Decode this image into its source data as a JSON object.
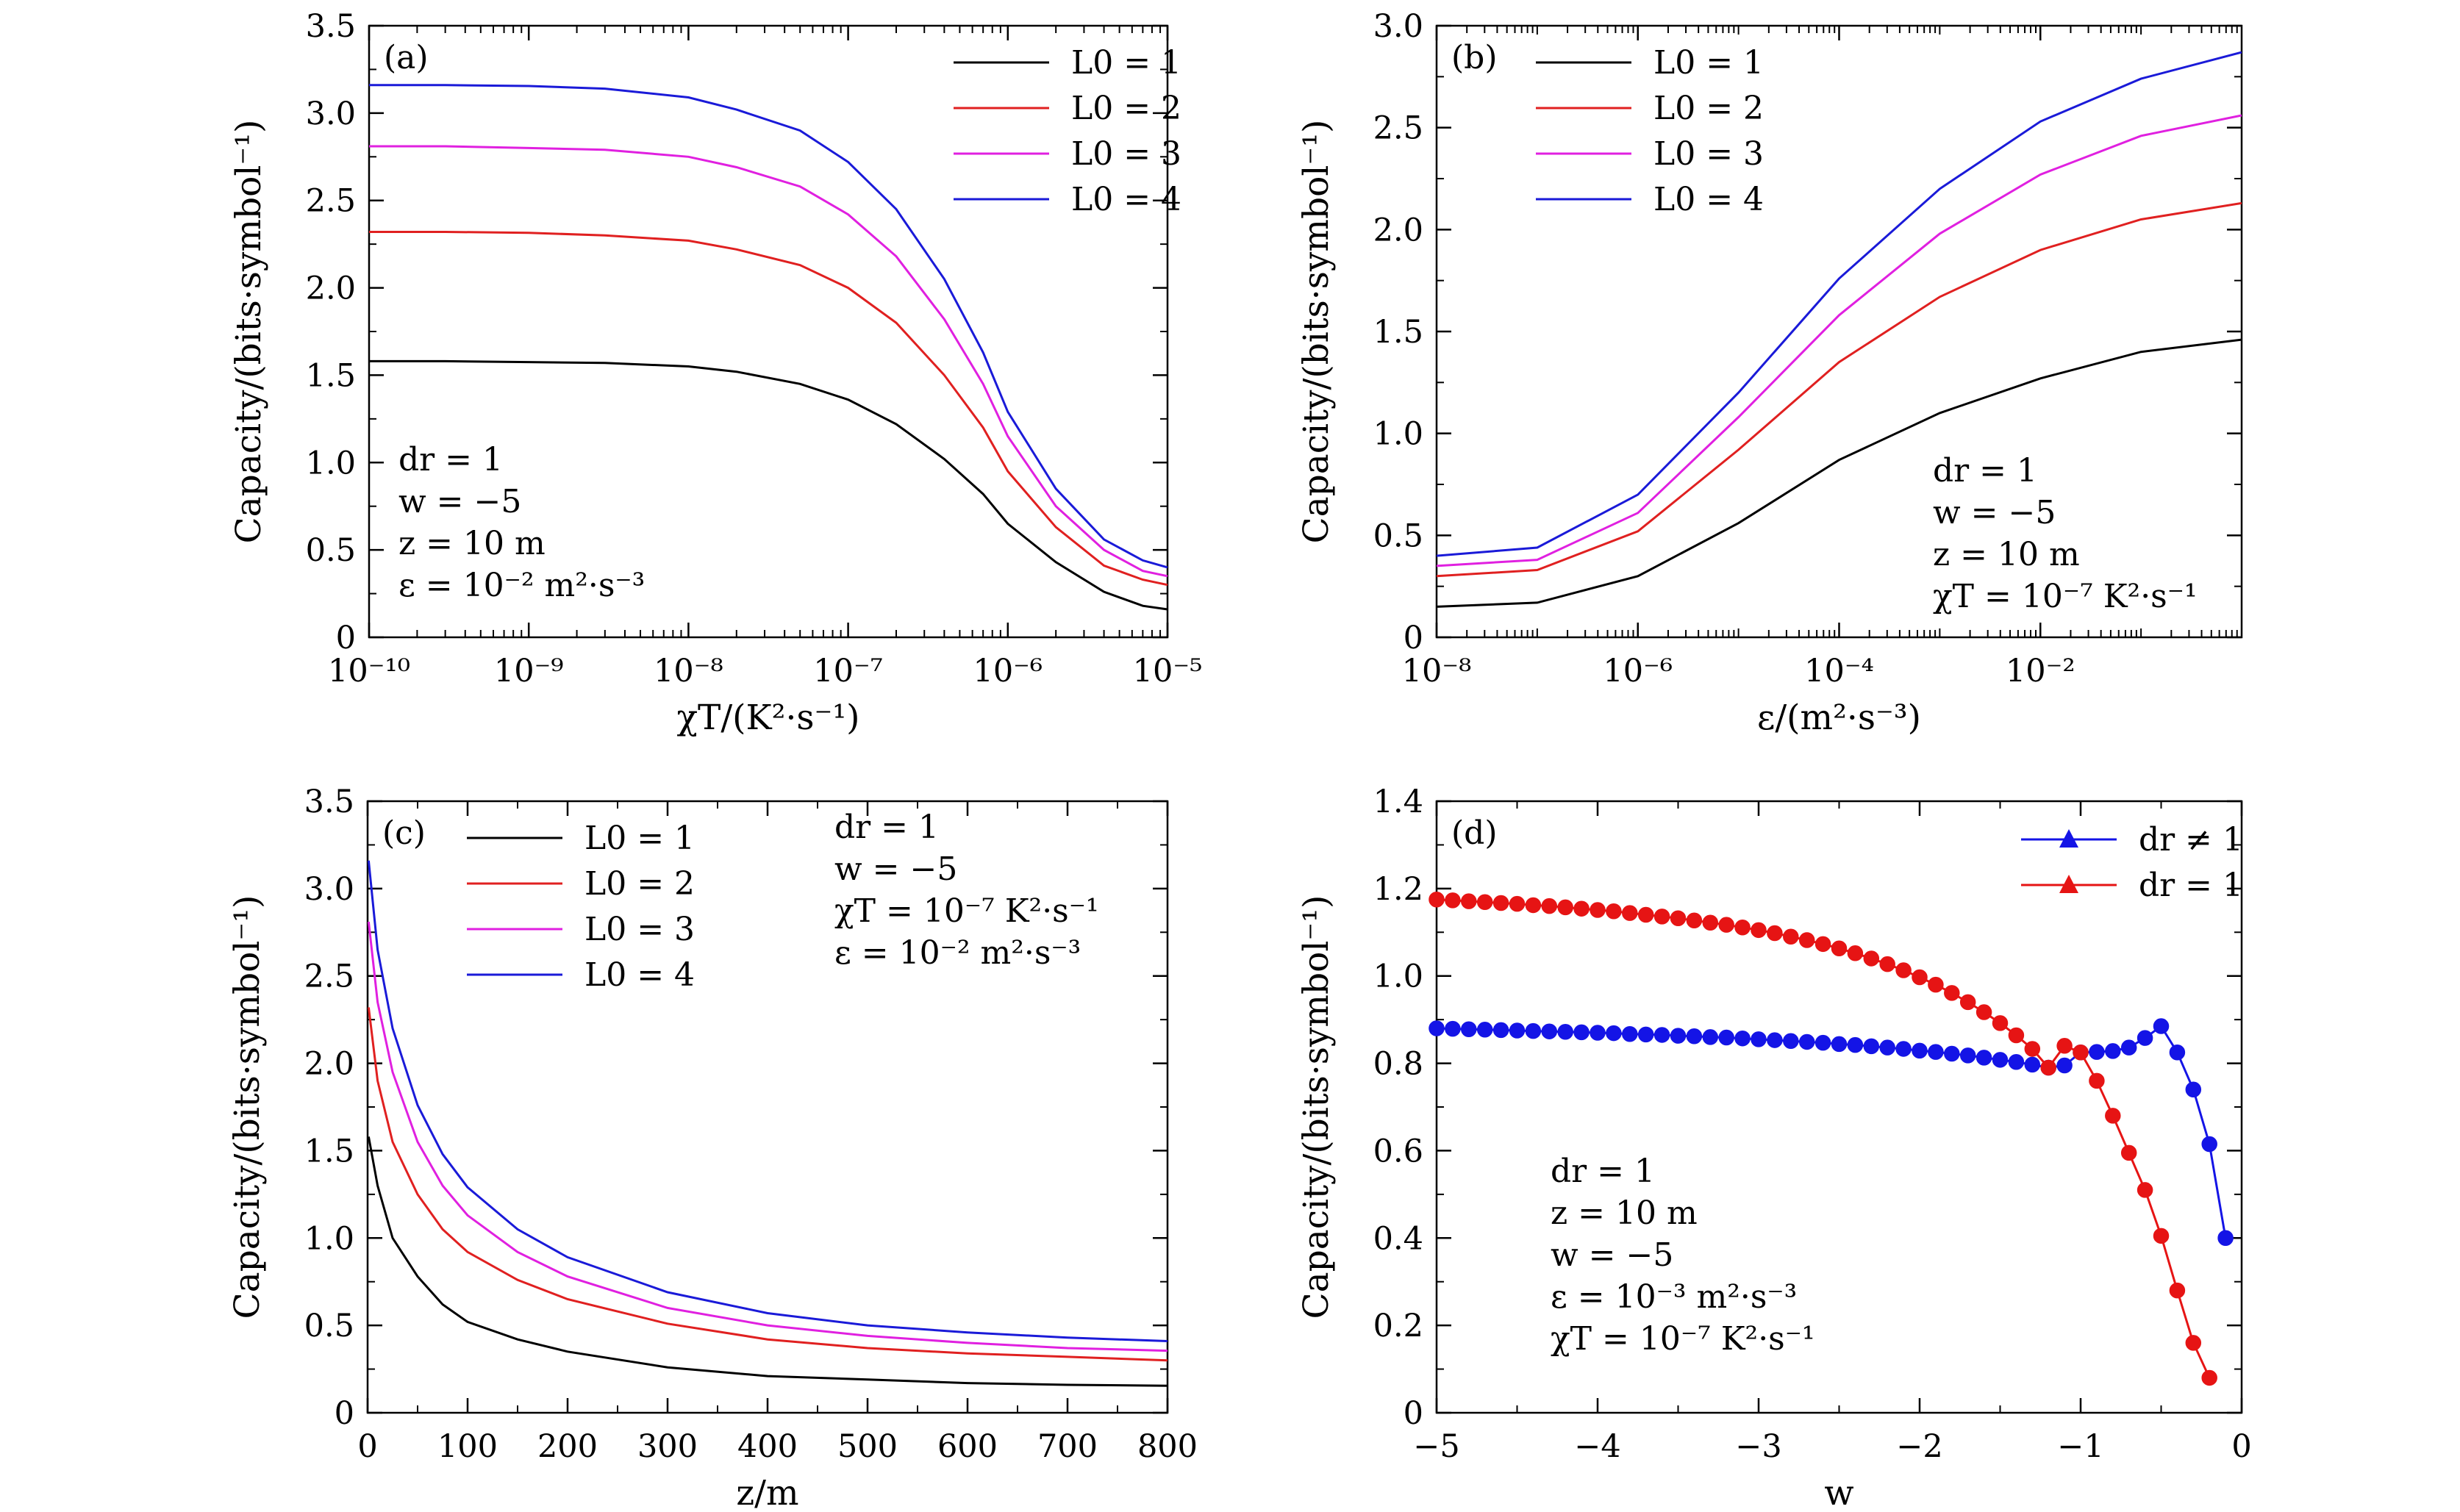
{
  "figure": {
    "panels": [
      {
        "tag": "(a)",
        "xlabel": "χT/(K²·s⁻¹)",
        "ylabel": "Capacity/(bits·symbol⁻¹)",
        "x_ticks": [
          "10⁻¹⁰",
          "10⁻⁹",
          "10⁻⁸",
          "10⁻⁷",
          "10⁻⁶",
          "10⁻⁵"
        ],
        "y_ticks": [
          "0",
          "0.5",
          "1.0",
          "1.5",
          "2.0",
          "2.5",
          "3.0",
          "3.5"
        ],
        "legend": [
          "L0 = 1",
          "L0 = 2",
          "L0 = 3",
          "L0 = 4"
        ],
        "notes": [
          "dr = 1",
          "w = −5",
          "z = 10 m",
          "ε = 10⁻² m²·s⁻³"
        ]
      },
      {
        "tag": "(b)",
        "xlabel": "ε/(m²·s⁻³)",
        "ylabel": "Capacity/(bits·symbol⁻¹)",
        "x_ticks": [
          "10⁻⁸",
          "10⁻⁶",
          "10⁻⁴",
          "10⁻²"
        ],
        "y_ticks": [
          "0",
          "0.5",
          "1.0",
          "1.5",
          "2.0",
          "2.5",
          "3.0"
        ],
        "legend": [
          "L0 = 1",
          "L0 = 2",
          "L0 = 3",
          "L0 = 4"
        ],
        "notes": [
          "dr = 1",
          "w = −5",
          "z = 10 m",
          "χT = 10⁻⁷ K²·s⁻¹"
        ]
      },
      {
        "tag": "(c)",
        "xlabel": "z/m",
        "ylabel": "Capacity/(bits·symbol⁻¹)",
        "x_ticks": [
          "0",
          "100",
          "200",
          "300",
          "400",
          "500",
          "600",
          "700",
          "800"
        ],
        "y_ticks": [
          "0",
          "0.5",
          "1.0",
          "1.5",
          "2.0",
          "2.5",
          "3.0",
          "3.5"
        ],
        "legend": [
          "L0 = 1",
          "L0 = 2",
          "L0 = 3",
          "L0 = 4"
        ],
        "notes": [
          "dr = 1",
          "w = −5",
          "χT = 10⁻⁷ K²·s⁻¹",
          "ε = 10⁻² m²·s⁻³"
        ]
      },
      {
        "tag": "(d)",
        "xlabel": "w",
        "ylabel": "Capacity/(bits·symbol⁻¹)",
        "x_ticks": [
          "−5",
          "−4",
          "−3",
          "−2",
          "−1",
          "0"
        ],
        "y_ticks": [
          "0",
          "0.2",
          "0.4",
          "0.6",
          "0.8",
          "1.0",
          "1.2",
          "1.4"
        ],
        "legend": [
          "dr ≠ 1",
          "dr = 1"
        ],
        "notes": [
          "dr = 1",
          "z = 10 m",
          "w = −5",
          "ε = 10⁻³ m²·s⁻³",
          "χT = 10⁻⁷ K²·s⁻¹"
        ]
      }
    ]
  },
  "colors": {
    "L0_1": "#000000",
    "L0_2": "#e02020",
    "L0_3": "#e020e0",
    "L0_4": "#1a1ad8",
    "dr_neq_1": "#1414e6",
    "dr_eq_1": "#e61414"
  },
  "chart_data": [
    {
      "type": "line",
      "x_scale": "log",
      "xlim": [
        1e-10,
        1e-05
      ],
      "ylim": [
        0,
        3.5
      ],
      "x": [
        1e-10,
        3e-10,
        1e-09,
        3e-09,
        1e-08,
        2e-08,
        5e-08,
        1e-07,
        2e-07,
        4e-07,
        7e-07,
        1e-06,
        2e-06,
        4e-06,
        7e-06,
        1e-05
      ],
      "series": [
        {
          "name": "L0 = 1",
          "values": [
            1.58,
            1.58,
            1.575,
            1.57,
            1.55,
            1.52,
            1.45,
            1.36,
            1.22,
            1.02,
            0.82,
            0.65,
            0.43,
            0.26,
            0.18,
            0.16
          ]
        },
        {
          "name": "L0 = 2",
          "values": [
            2.32,
            2.32,
            2.315,
            2.3,
            2.27,
            2.22,
            2.13,
            2.0,
            1.8,
            1.5,
            1.2,
            0.95,
            0.63,
            0.41,
            0.33,
            0.3
          ]
        },
        {
          "name": "L0 = 3",
          "values": [
            2.81,
            2.81,
            2.8,
            2.79,
            2.75,
            2.69,
            2.58,
            2.42,
            2.18,
            1.82,
            1.45,
            1.15,
            0.75,
            0.5,
            0.38,
            0.35
          ]
        },
        {
          "name": "L0 = 4",
          "values": [
            3.16,
            3.16,
            3.155,
            3.14,
            3.09,
            3.02,
            2.9,
            2.72,
            2.45,
            2.05,
            1.63,
            1.29,
            0.85,
            0.56,
            0.44,
            0.4
          ]
        }
      ]
    },
    {
      "type": "line",
      "x_scale": "log",
      "xlim": [
        1e-08,
        1
      ],
      "ylim": [
        0,
        3.0
      ],
      "x": [
        1e-08,
        1e-07,
        1e-06,
        1e-05,
        0.0001,
        0.001,
        0.01,
        0.1,
        1
      ],
      "series": [
        {
          "name": "L0 = 1",
          "values": [
            0.15,
            0.17,
            0.3,
            0.56,
            0.87,
            1.1,
            1.27,
            1.4,
            1.46
          ]
        },
        {
          "name": "L0 = 2",
          "values": [
            0.3,
            0.33,
            0.52,
            0.92,
            1.35,
            1.67,
            1.9,
            2.05,
            2.13
          ]
        },
        {
          "name": "L0 = 3",
          "values": [
            0.35,
            0.38,
            0.61,
            1.08,
            1.58,
            1.98,
            2.27,
            2.46,
            2.56
          ]
        },
        {
          "name": "L0 = 4",
          "values": [
            0.4,
            0.44,
            0.7,
            1.2,
            1.76,
            2.2,
            2.53,
            2.74,
            2.87
          ]
        }
      ]
    },
    {
      "type": "line",
      "xlim": [
        0,
        800
      ],
      "ylim": [
        0,
        3.5
      ],
      "x": [
        1,
        10,
        25,
        50,
        75,
        100,
        150,
        200,
        300,
        400,
        500,
        600,
        700,
        800
      ],
      "series": [
        {
          "name": "L0 = 1",
          "values": [
            1.58,
            1.3,
            1.0,
            0.78,
            0.62,
            0.52,
            0.42,
            0.35,
            0.26,
            0.21,
            0.19,
            0.17,
            0.16,
            0.155
          ]
        },
        {
          "name": "L0 = 2",
          "values": [
            2.32,
            1.9,
            1.55,
            1.25,
            1.05,
            0.92,
            0.76,
            0.65,
            0.51,
            0.42,
            0.37,
            0.34,
            0.32,
            0.3
          ]
        },
        {
          "name": "L0 = 3",
          "values": [
            2.81,
            2.35,
            1.95,
            1.55,
            1.3,
            1.13,
            0.92,
            0.78,
            0.6,
            0.5,
            0.44,
            0.4,
            0.37,
            0.355
          ]
        },
        {
          "name": "L0 = 4",
          "values": [
            3.16,
            2.65,
            2.2,
            1.76,
            1.48,
            1.29,
            1.05,
            0.89,
            0.69,
            0.57,
            0.5,
            0.46,
            0.43,
            0.41
          ]
        }
      ]
    },
    {
      "type": "line",
      "markers": true,
      "xlim": [
        -5,
        0
      ],
      "ylim": [
        0,
        1.4
      ],
      "series": [
        {
          "name": "dr ≠ 1",
          "points": [
            [
              -5.0,
              0.88
            ],
            [
              -4.9,
              0.879
            ],
            [
              -4.8,
              0.878
            ],
            [
              -4.7,
              0.877
            ],
            [
              -4.6,
              0.876
            ],
            [
              -4.5,
              0.875
            ],
            [
              -4.4,
              0.874
            ],
            [
              -4.3,
              0.873
            ],
            [
              -4.2,
              0.872
            ],
            [
              -4.1,
              0.871
            ],
            [
              -4.0,
              0.87
            ],
            [
              -3.9,
              0.869
            ],
            [
              -3.8,
              0.867
            ],
            [
              -3.7,
              0.866
            ],
            [
              -3.6,
              0.865
            ],
            [
              -3.5,
              0.863
            ],
            [
              -3.4,
              0.862
            ],
            [
              -3.3,
              0.86
            ],
            [
              -3.2,
              0.859
            ],
            [
              -3.1,
              0.857
            ],
            [
              -3.0,
              0.855
            ],
            [
              -2.9,
              0.853
            ],
            [
              -2.8,
              0.851
            ],
            [
              -2.7,
              0.849
            ],
            [
              -2.6,
              0.847
            ],
            [
              -2.5,
              0.844
            ],
            [
              -2.4,
              0.842
            ],
            [
              -2.3,
              0.839
            ],
            [
              -2.2,
              0.836
            ],
            [
              -2.1,
              0.833
            ],
            [
              -2.0,
              0.829
            ],
            [
              -1.9,
              0.826
            ],
            [
              -1.8,
              0.822
            ],
            [
              -1.7,
              0.818
            ],
            [
              -1.6,
              0.813
            ],
            [
              -1.5,
              0.808
            ],
            [
              -1.4,
              0.803
            ],
            [
              -1.3,
              0.797
            ],
            [
              -1.2,
              0.79
            ],
            [
              -1.1,
              0.795
            ],
            [
              -1.0,
              0.825
            ],
            [
              -0.9,
              0.826
            ],
            [
              -0.8,
              0.828
            ],
            [
              -0.7,
              0.836
            ],
            [
              -0.6,
              0.858
            ],
            [
              -0.5,
              0.885
            ],
            [
              -0.4,
              0.825
            ],
            [
              -0.3,
              0.74
            ],
            [
              -0.2,
              0.615
            ],
            [
              -0.1,
              0.4
            ]
          ]
        },
        {
          "name": "dr = 1",
          "points": [
            [
              -5.0,
              1.175
            ],
            [
              -4.9,
              1.173
            ],
            [
              -4.8,
              1.171
            ],
            [
              -4.7,
              1.169
            ],
            [
              -4.6,
              1.167
            ],
            [
              -4.5,
              1.165
            ],
            [
              -4.4,
              1.162
            ],
            [
              -4.3,
              1.16
            ],
            [
              -4.2,
              1.157
            ],
            [
              -4.1,
              1.154
            ],
            [
              -4.0,
              1.151
            ],
            [
              -3.9,
              1.148
            ],
            [
              -3.8,
              1.144
            ],
            [
              -3.7,
              1.14
            ],
            [
              -3.6,
              1.136
            ],
            [
              -3.5,
              1.132
            ],
            [
              -3.4,
              1.127
            ],
            [
              -3.3,
              1.122
            ],
            [
              -3.2,
              1.117
            ],
            [
              -3.1,
              1.111
            ],
            [
              -3.0,
              1.105
            ],
            [
              -2.9,
              1.098
            ],
            [
              -2.8,
              1.09
            ],
            [
              -2.7,
              1.082
            ],
            [
              -2.6,
              1.073
            ],
            [
              -2.5,
              1.063
            ],
            [
              -2.4,
              1.052
            ],
            [
              -2.3,
              1.04
            ],
            [
              -2.2,
              1.027
            ],
            [
              -2.1,
              1.013
            ],
            [
              -2.0,
              0.997
            ],
            [
              -1.9,
              0.98
            ],
            [
              -1.8,
              0.961
            ],
            [
              -1.7,
              0.94
            ],
            [
              -1.6,
              0.917
            ],
            [
              -1.5,
              0.892
            ],
            [
              -1.4,
              0.864
            ],
            [
              -1.3,
              0.833
            ],
            [
              -1.2,
              0.79
            ],
            [
              -1.1,
              0.84
            ],
            [
              -1.0,
              0.825
            ],
            [
              -0.9,
              0.76
            ],
            [
              -0.8,
              0.68
            ],
            [
              -0.7,
              0.595
            ],
            [
              -0.6,
              0.51
            ],
            [
              -0.5,
              0.405
            ],
            [
              -0.4,
              0.28
            ],
            [
              -0.3,
              0.16
            ],
            [
              -0.2,
              0.08
            ]
          ]
        }
      ]
    }
  ]
}
